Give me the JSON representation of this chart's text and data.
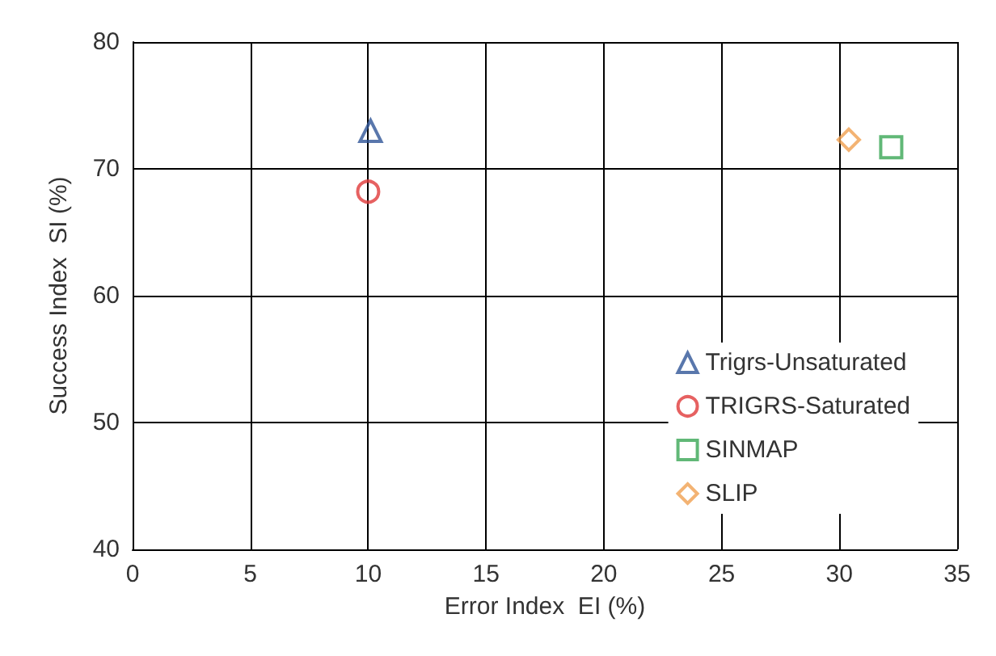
{
  "chart_data": {
    "type": "scatter",
    "xlabel": "Error Index  EI (%)",
    "ylabel": "Success Index  SI (%)",
    "xlim": [
      0,
      35
    ],
    "xticks": [
      0,
      5,
      10,
      15,
      20,
      25,
      30,
      35
    ],
    "ylim": [
      40,
      80
    ],
    "yticks": [
      40,
      50,
      60,
      70,
      80
    ],
    "grid": true,
    "legend": "bottom right",
    "series": [
      {
        "name": "Trigrs-Unsaturated",
        "color": "#2f5597",
        "marker": "triangle",
        "x": [
          10.1
        ],
        "values": [
          73
        ]
      },
      {
        "name": "TRIGRS-Saturated",
        "color": "#e03a3a",
        "marker": "circle",
        "x": [
          10
        ],
        "values": [
          68.2
        ]
      },
      {
        "name": "SINMAP",
        "color": "#3aa655",
        "marker": "square",
        "x": [
          32.2
        ],
        "values": [
          71.7
        ]
      },
      {
        "name": "SLIP",
        "color": "#f0a050",
        "marker": "diamond",
        "x": [
          30.4
        ],
        "values": [
          72.3
        ]
      }
    ]
  }
}
